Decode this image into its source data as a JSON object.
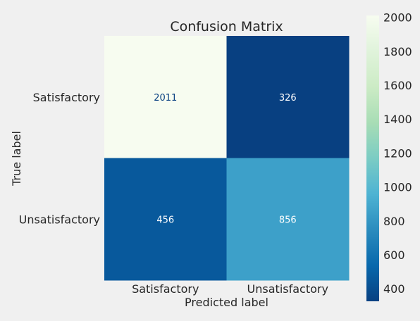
{
  "chart_data": {
    "type": "heatmap",
    "title": "Confusion Matrix",
    "xlabel": "Predicted label",
    "ylabel": "True label",
    "x_categories": [
      "Satisfactory",
      "Unsatisfactory"
    ],
    "y_categories": [
      "Satisfactory",
      "Unsatisfactory"
    ],
    "matrix": [
      [
        2011,
        326
      ],
      [
        456,
        856
      ]
    ],
    "colorbar": {
      "min": 326,
      "max": 2011,
      "ticks": [
        400,
        600,
        800,
        1000,
        1200,
        1400,
        1600,
        1800,
        2000
      ],
      "tick_labels": [
        "400",
        "600",
        "800",
        "1000",
        "1200",
        "1400",
        "1600",
        "1800",
        "2000"
      ],
      "colormap": "GnBu_r"
    },
    "grid": false
  }
}
